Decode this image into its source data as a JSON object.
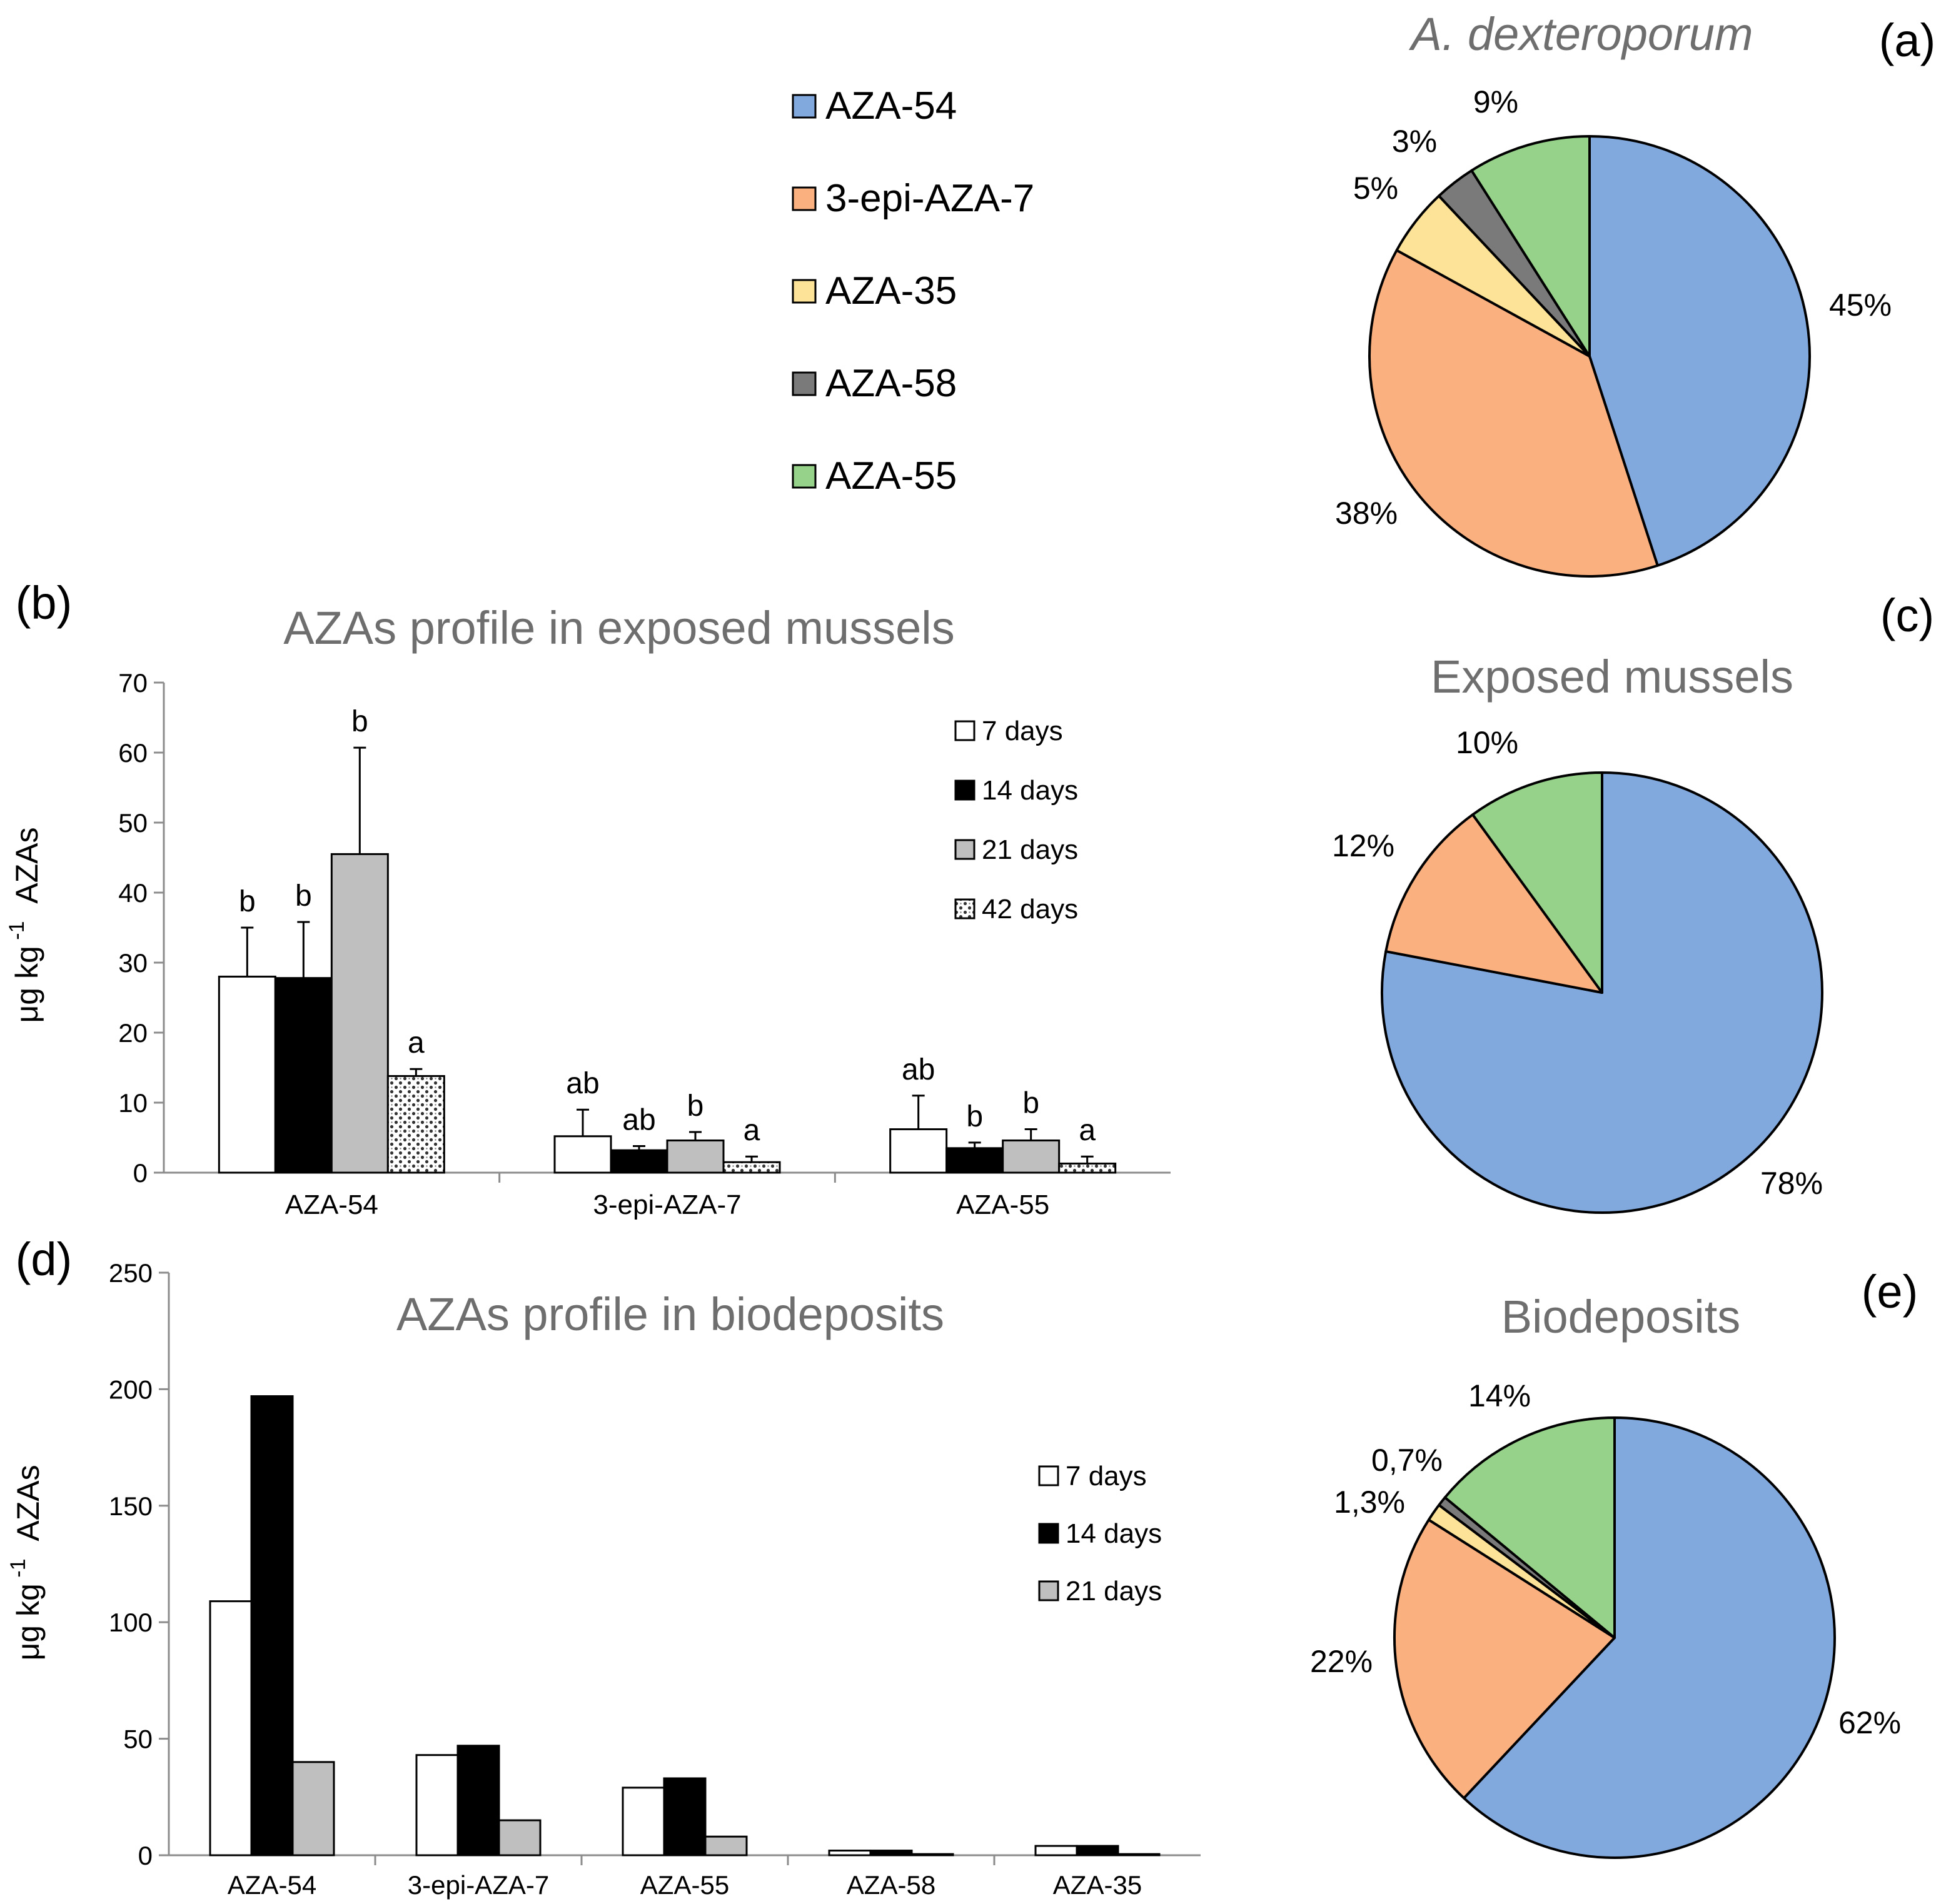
{
  "colors": {
    "AZA-54": "#81a9de",
    "3-epi-AZA-7": "#fbb07f",
    "AZA-35": "#fde398",
    "AZA-58": "#7a7a7a",
    "AZA-55": "#96d28a",
    "7 days": "#ffffff",
    "14 days": "#000000",
    "21 days": "#bfbfbf",
    "42 days": "#ffffff",
    "title_gray": "#6e6e6e"
  },
  "legend_toxins": [
    "AZA-54",
    "3-epi-AZA-7",
    "AZA-35",
    "AZA-58",
    "AZA-55"
  ],
  "panel_labels": {
    "a": "(a)",
    "b": "(b)",
    "c": "(c)",
    "d": "(d)",
    "e": "(e)"
  },
  "chart_data": [
    {
      "id": "a",
      "type": "pie",
      "title": "A. dexteroporum",
      "slices": [
        {
          "name": "AZA-54",
          "value": 45,
          "label": "45%"
        },
        {
          "name": "3-epi-AZA-7",
          "value": 38,
          "label": "38%"
        },
        {
          "name": "AZA-35",
          "value": 5,
          "label": "5%"
        },
        {
          "name": "AZA-58",
          "value": 3,
          "label": "3%"
        },
        {
          "name": "AZA-55",
          "value": 9,
          "label": "9%"
        }
      ]
    },
    {
      "id": "b",
      "type": "bar",
      "title": "AZAs profile in exposed mussels",
      "ylabel_main": "μg kg",
      "ylabel_sup": "-1",
      "ylabel_tail": "AZAs",
      "ylim": [
        0,
        70
      ],
      "yticks": [
        0,
        10,
        20,
        30,
        40,
        50,
        60,
        70
      ],
      "categories": [
        "AZA-54",
        "3-epi-AZA-7",
        "AZA-55"
      ],
      "series": [
        {
          "name": "7 days",
          "values": [
            28,
            5.2,
            6.2
          ],
          "errors": [
            7,
            3.8,
            4.8
          ],
          "letters": [
            "b",
            "ab",
            "ab"
          ]
        },
        {
          "name": "14 days",
          "values": [
            27.8,
            3.2,
            3.5
          ],
          "errors": [
            8,
            0.6,
            0.8
          ],
          "letters": [
            "b",
            "ab",
            "b"
          ]
        },
        {
          "name": "21 days",
          "values": [
            45.5,
            4.6,
            4.6
          ],
          "errors": [
            15.2,
            1.2,
            1.6
          ],
          "letters": [
            "b",
            "b",
            "b"
          ]
        },
        {
          "name": "42 days",
          "values": [
            13.8,
            1.5,
            1.3
          ],
          "errors": [
            1,
            0.8,
            1
          ],
          "letters": [
            "a",
            "a",
            "a"
          ]
        }
      ]
    },
    {
      "id": "c",
      "type": "pie",
      "title": "Exposed mussels",
      "slices": [
        {
          "name": "AZA-54",
          "value": 78,
          "label": "78%"
        },
        {
          "name": "3-epi-AZA-7",
          "value": 12,
          "label": "12%"
        },
        {
          "name": "AZA-55",
          "value": 10,
          "label": "10%"
        }
      ]
    },
    {
      "id": "d",
      "type": "bar",
      "title": "AZAs profile in biodeposits",
      "ylabel_main": "μg kg",
      "ylabel_sup": "-1",
      "ylabel_tail": "AZAs",
      "ylim": [
        0,
        250
      ],
      "yticks": [
        0,
        50,
        100,
        150,
        200,
        250
      ],
      "categories": [
        "AZA-54",
        "3-epi-AZA-7",
        "AZA-55",
        "AZA-58",
        "AZA-35"
      ],
      "series": [
        {
          "name": "7 days",
          "values": [
            109,
            43,
            29,
            2,
            4
          ]
        },
        {
          "name": "14 days",
          "values": [
            197,
            47,
            33,
            2,
            4
          ]
        },
        {
          "name": "21 days",
          "values": [
            40,
            15,
            8,
            0.5,
            0.5
          ]
        }
      ]
    },
    {
      "id": "e",
      "type": "pie",
      "title": "Biodeposits",
      "slices": [
        {
          "name": "AZA-54",
          "value": 62,
          "label": "62%"
        },
        {
          "name": "3-epi-AZA-7",
          "value": 22,
          "label": "22%"
        },
        {
          "name": "AZA-35",
          "value": 1.3,
          "label": "1,3%"
        },
        {
          "name": "AZA-58",
          "value": 0.7,
          "label": "0,7%"
        },
        {
          "name": "AZA-55",
          "value": 14,
          "label": "14%"
        }
      ]
    }
  ]
}
